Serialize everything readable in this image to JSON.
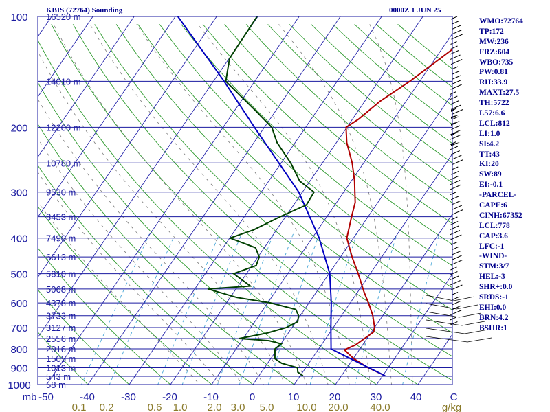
{
  "header": {
    "station": "KBIS (72764) Sounding",
    "time": "0000Z  1 JUN 25"
  },
  "stats": [
    "WMO:72764",
    "TP:172",
    "MW:236",
    "FRZ:604",
    "WBO:735",
    "PW:0.81",
    "RH:33.9",
    "MAXT:27.5",
    "TH:5722",
    "L57:6.6",
    "LCL:812",
    "LI:1.0",
    "SI:4.2",
    "TT:43",
    "KI:20",
    "SW:89",
    "EI:-0.1",
    "-PARCEL-",
    "CAPE:6",
    "CINH:67352",
    "LCL:778",
    "CAP:3.6",
    "LFC:-1",
    "-WIND-",
    "STM:3/7",
    "HEL:-3",
    "SHR+:0.0",
    "SRDS:-1",
    "EHI:0.0",
    "BRN:4.2",
    "BSHR:1"
  ],
  "chart_data": {
    "type": "line",
    "title": "KBIS (72764) Sounding",
    "xlabel": "C",
    "ylabel": "mb",
    "x_unit": "C",
    "y_unit": "mb",
    "mixing_ratio_unit": "g/kg",
    "y_scale": "log",
    "xlim": [
      -50,
      50
    ],
    "ylim": [
      1000,
      100
    ],
    "grid": true,
    "pressure_ticks": [
      100,
      200,
      300,
      400,
      500,
      600,
      700,
      800,
      900,
      1000
    ],
    "temperature_ticks": [
      "-50",
      "-40",
      "-30",
      "-20",
      "-10",
      "0",
      "10",
      "20",
      "30",
      "40",
      "C"
    ],
    "mixing_ratio_ticks": [
      "0.1",
      "0.2",
      "0.6",
      "1.0",
      "2.0",
      "3.0",
      "5.0",
      "10.0",
      "20.0",
      "40.0",
      "g/kg"
    ],
    "height_levels": [
      {
        "p": 100,
        "label": "16520 m"
      },
      {
        "p": 150,
        "label": "14010 m"
      },
      {
        "p": 200,
        "label": "12200 m"
      },
      {
        "p": 250,
        "label": "10780 m"
      },
      {
        "p": 300,
        "label": "9530 m"
      },
      {
        "p": 350,
        "label": "8453 m"
      },
      {
        "p": 400,
        "label": "7490 m"
      },
      {
        "p": 450,
        "label": "6613 m"
      },
      {
        "p": 500,
        "label": "5810 m"
      },
      {
        "p": 550,
        "label": "5068 m"
      },
      {
        "p": 600,
        "label": "4378 m"
      },
      {
        "p": 650,
        "label": "3733 m"
      },
      {
        "p": 700,
        "label": "3127 m"
      },
      {
        "p": 750,
        "label": "2556 m"
      },
      {
        "p": 800,
        "label": "2016 m"
      },
      {
        "p": 850,
        "label": "1505 m"
      },
      {
        "p": 900,
        "label": "1013 m"
      },
      {
        "p": 950,
        "label": "543 m"
      },
      {
        "p": 1000,
        "label": "58 m"
      }
    ],
    "series": [
      {
        "name": "",
        "color": "#b00000",
        "points": [
          {
            "p": 946,
            "x": 30.5
          },
          {
            "p": 900,
            "x": 25.1
          },
          {
            "p": 850,
            "x": 20.1
          },
          {
            "p": 805,
            "x": 16.4
          },
          {
            "p": 780,
            "x": 18.3
          },
          {
            "p": 720,
            "x": 20.5
          },
          {
            "p": 700,
            "x": 20.0
          },
          {
            "p": 650,
            "x": 17.6
          },
          {
            "p": 610,
            "x": 15.1
          },
          {
            "p": 560,
            "x": 11.5
          },
          {
            "p": 500,
            "x": 7.1
          },
          {
            "p": 450,
            "x": 2.8
          },
          {
            "p": 400,
            "x": -1.6
          },
          {
            "p": 350,
            "x": -4.0
          },
          {
            "p": 320,
            "x": -5.5
          },
          {
            "p": 300,
            "x": -7.3
          },
          {
            "p": 280,
            "x": -9.2
          },
          {
            "p": 250,
            "x": -12.8
          },
          {
            "p": 220,
            "x": -17.5
          },
          {
            "p": 200,
            "x": -20.2
          },
          {
            "p": 190,
            "x": -18.5
          },
          {
            "p": 170,
            "x": -16.3
          },
          {
            "p": 150,
            "x": -12.4
          },
          {
            "p": 130,
            "x": -8.8
          },
          {
            "p": 100,
            "x": -2.3
          }
        ]
      },
      {
        "name": "",
        "color": "#0000c0",
        "points": [
          {
            "p": 946,
            "x": 30.5
          },
          {
            "p": 850,
            "x": 19.3
          },
          {
            "p": 800,
            "x": 13.0
          },
          {
            "p": 700,
            "x": 9.4
          },
          {
            "p": 600,
            "x": 5.4
          },
          {
            "p": 500,
            "x": 0.2
          },
          {
            "p": 400,
            "x": -8.3
          },
          {
            "p": 300,
            "x": -20.9
          },
          {
            "p": 200,
            "x": -42.4
          },
          {
            "p": 150,
            "x": -57.4
          },
          {
            "p": 100,
            "x": -79.4
          }
        ]
      },
      {
        "name": "",
        "color": "#004000",
        "points": [
          {
            "p": 946,
            "x": 10.6
          },
          {
            "p": 925,
            "x": 8.8
          },
          {
            "p": 900,
            "x": 8.0
          },
          {
            "p": 875,
            "x": 3.4
          },
          {
            "p": 850,
            "x": 1.0
          },
          {
            "p": 800,
            "x": -0.6
          },
          {
            "p": 775,
            "x": 0.1
          },
          {
            "p": 760,
            "x": -3.4
          },
          {
            "p": 750,
            "x": -11.0
          },
          {
            "p": 725,
            "x": -5.2
          },
          {
            "p": 700,
            "x": -1.4
          },
          {
            "p": 675,
            "x": 0.4
          },
          {
            "p": 650,
            "x": -0.4
          },
          {
            "p": 625,
            "x": -2.1
          },
          {
            "p": 600,
            "x": -9.3
          },
          {
            "p": 580,
            "x": -18.4
          },
          {
            "p": 550,
            "x": -26.8
          },
          {
            "p": 540,
            "x": -17.0
          },
          {
            "p": 500,
            "x": -23.1
          },
          {
            "p": 475,
            "x": -19.0
          },
          {
            "p": 450,
            "x": -19.7
          },
          {
            "p": 425,
            "x": -22.1
          },
          {
            "p": 400,
            "x": -29.9
          },
          {
            "p": 380,
            "x": -25.6
          },
          {
            "p": 350,
            "x": -21.3
          },
          {
            "p": 325,
            "x": -16.9
          },
          {
            "p": 300,
            "x": -17.2
          },
          {
            "p": 280,
            "x": -22.5
          },
          {
            "p": 250,
            "x": -27.7
          },
          {
            "p": 220,
            "x": -34.4
          },
          {
            "p": 200,
            "x": -38.2
          },
          {
            "p": 180,
            "x": -45.0
          },
          {
            "p": 150,
            "x": -57.0
          },
          {
            "p": 130,
            "x": -59.9
          },
          {
            "p": 100,
            "x": -60.2
          }
        ]
      }
    ]
  }
}
